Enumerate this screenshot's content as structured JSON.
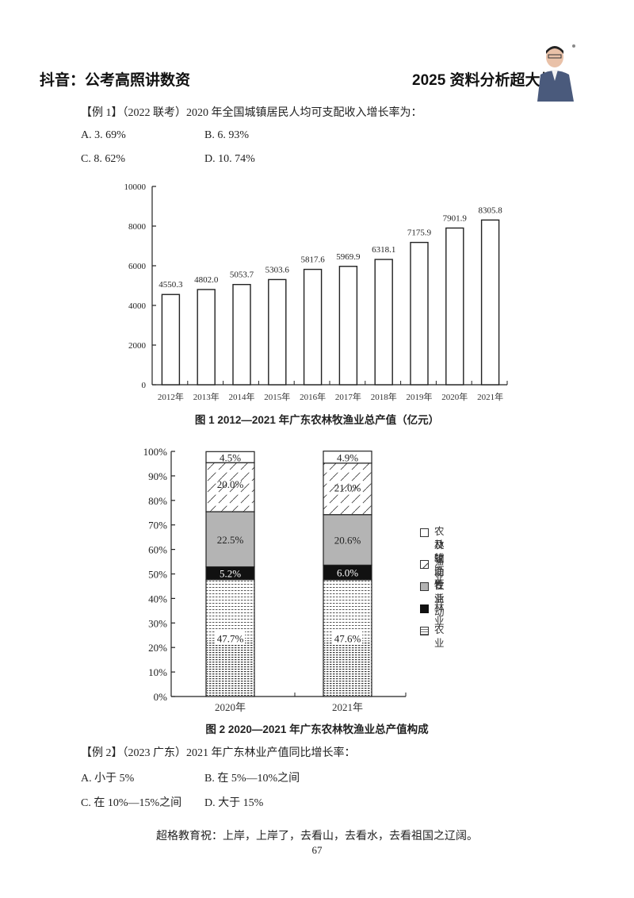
{
  "header": {
    "left_title": "抖音：公考高照讲数资",
    "right_title": "2025 资料分析超大杯"
  },
  "example1": {
    "question": "【例 1】（2022 联考）2020 年全国城镇居民人均可支配收入增长率为：",
    "options": [
      {
        "label": "A. 3. 69%"
      },
      {
        "label": "B. 6. 93%"
      },
      {
        "label": "C. 8. 62%"
      },
      {
        "label": "D. 10. 74%"
      }
    ]
  },
  "chart_data": [
    {
      "type": "bar",
      "title": "图 1   2012—2021 年广东农林牧渔业总产值（亿元）",
      "categories": [
        "2012年",
        "2013年",
        "2014年",
        "2015年",
        "2016年",
        "2017年",
        "2018年",
        "2019年",
        "2020年",
        "2021年"
      ],
      "values": [
        4550.3,
        4802.0,
        5053.7,
        5303.6,
        5817.6,
        5969.9,
        6318.1,
        7175.9,
        7901.9,
        8305.8
      ],
      "value_labels": [
        "4550.3",
        "4802.0",
        "5053.7",
        "5303.6",
        "5817.6",
        "5969.9",
        "6318.1",
        "7175.9",
        "7901.9",
        "8305.8"
      ],
      "xlabel": "",
      "ylabel": "",
      "ylim": [
        0,
        10000
      ],
      "yticks": [
        "0",
        "2000",
        "4000",
        "6000",
        "8000",
        "10000"
      ],
      "grid": false
    },
    {
      "type": "bar",
      "stacked": true,
      "percent": true,
      "title": "图 2   2020—2021 年广东农林牧渔业总产值构成",
      "categories": [
        "2020年",
        "2021年"
      ],
      "series": [
        {
          "name": "农业",
          "values": [
            47.7,
            47.6
          ],
          "labels": [
            "47.7%",
            "47.6%"
          ]
        },
        {
          "name": "林业",
          "values": [
            5.2,
            6.0
          ],
          "labels": [
            "5.2%",
            "6.0%"
          ]
        },
        {
          "name": "牧业",
          "values": [
            22.5,
            20.6
          ],
          "labels": [
            "22.5%",
            "20.6%"
          ]
        },
        {
          "name": "渔业",
          "values": [
            20.0,
            21.0
          ],
          "labels": [
            "20.0%",
            "21.0%"
          ]
        },
        {
          "name": "农林牧渔专业及辅助性活动",
          "values": [
            4.5,
            4.9
          ],
          "labels": [
            "4.5%",
            "4.9%"
          ]
        }
      ],
      "ylim": [
        0,
        100
      ],
      "yticks": [
        "0%",
        "10%",
        "20%",
        "30%",
        "40%",
        "50%",
        "60%",
        "70%",
        "80%",
        "90%",
        "100%"
      ],
      "legend": {
        "position": "right",
        "items": [
          {
            "line1": "农林牧渔专业",
            "line2": "及辅助性活动",
            "pattern": "white"
          },
          {
            "line1": "渔业",
            "pattern": "hatch"
          },
          {
            "line1": "牧业",
            "pattern": "gray"
          },
          {
            "line1": "林业",
            "pattern": "black"
          },
          {
            "line1": "农业",
            "pattern": "dotted"
          }
        ]
      },
      "colors": {
        "gray": "#b4b4b4",
        "black": "#111111",
        "white": "#ffffff"
      }
    }
  ],
  "example2": {
    "question": "【例 2】（2023 广东）2021 年广东林业产值同比增长率：",
    "options": [
      {
        "label": "A. 小于 5%"
      },
      {
        "label": "B. 在 5%—10%之间"
      },
      {
        "label": "C. 在 10%—15%之间"
      },
      {
        "label": "D. 大于 15%"
      }
    ]
  },
  "footer": {
    "motto": "超格教育祝：上岸，上岸了，去看山，去看水，去看祖国之辽阔。",
    "page_number": "67"
  }
}
